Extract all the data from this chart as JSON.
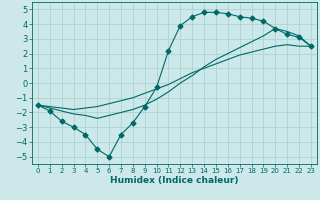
{
  "xlabel": "Humidex (Indice chaleur)",
  "bg_color": "#cce8e8",
  "grid_color": "#aad4d4",
  "line_color": "#006868",
  "xlim": [
    -0.5,
    23.5
  ],
  "ylim": [
    -5.5,
    5.5
  ],
  "xticks": [
    0,
    1,
    2,
    3,
    4,
    5,
    6,
    7,
    8,
    9,
    10,
    11,
    12,
    13,
    14,
    15,
    16,
    17,
    18,
    19,
    20,
    21,
    22,
    23
  ],
  "yticks": [
    -5,
    -4,
    -3,
    -2,
    -1,
    0,
    1,
    2,
    3,
    4,
    5
  ],
  "line1_x": [
    0,
    1,
    2,
    3,
    4,
    5,
    6,
    7,
    8,
    9,
    10,
    11,
    12,
    13,
    14,
    15,
    16,
    17,
    18,
    19,
    20,
    21,
    22,
    23
  ],
  "line1_y": [
    -1.5,
    -1.9,
    -2.6,
    -3.0,
    -3.5,
    -4.5,
    -5.0,
    -3.5,
    -2.7,
    -1.6,
    -0.3,
    2.2,
    3.9,
    4.5,
    4.8,
    4.8,
    4.7,
    4.5,
    4.4,
    4.2,
    3.7,
    3.3,
    3.1,
    2.5
  ],
  "line2_x": [
    0,
    1,
    2,
    3,
    4,
    5,
    6,
    7,
    8,
    9,
    10,
    11,
    12,
    13,
    14,
    15,
    16,
    17,
    18,
    19,
    20,
    21,
    22,
    23
  ],
  "line2_y": [
    -1.5,
    -1.6,
    -1.7,
    -1.8,
    -1.7,
    -1.6,
    -1.4,
    -1.2,
    -1.0,
    -0.7,
    -0.4,
    -0.1,
    0.3,
    0.7,
    1.0,
    1.3,
    1.6,
    1.9,
    2.1,
    2.3,
    2.5,
    2.6,
    2.5,
    2.5
  ],
  "line3_x": [
    0,
    1,
    2,
    3,
    4,
    5,
    6,
    7,
    8,
    9,
    10,
    11,
    12,
    13,
    14,
    15,
    16,
    17,
    18,
    19,
    20,
    21,
    22,
    23
  ],
  "line3_y": [
    -1.5,
    -1.7,
    -1.9,
    -2.1,
    -2.2,
    -2.4,
    -2.2,
    -2.0,
    -1.8,
    -1.5,
    -1.1,
    -0.6,
    0.0,
    0.5,
    1.1,
    1.6,
    2.0,
    2.4,
    2.8,
    3.2,
    3.7,
    3.5,
    3.2,
    2.5
  ]
}
